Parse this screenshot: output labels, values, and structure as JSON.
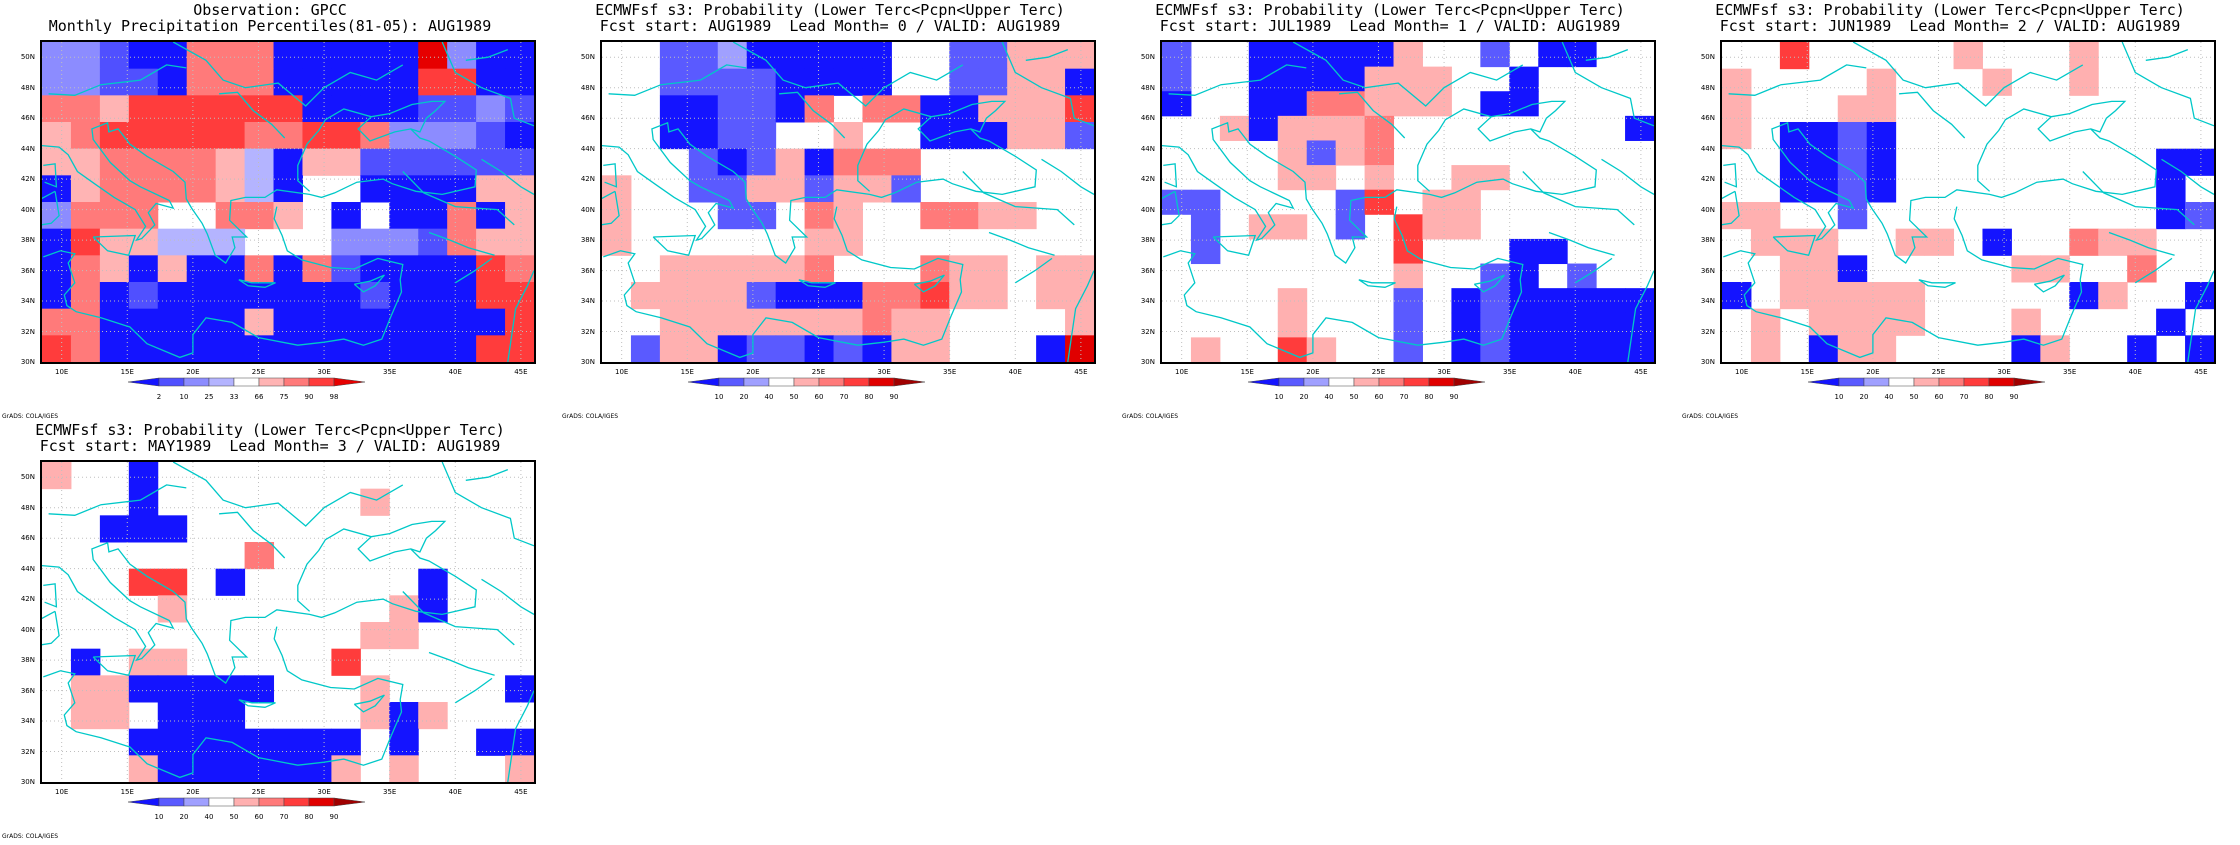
{
  "colors": {
    "coast": "#00c8c8",
    "grid": "#bfbfbf",
    "obs_levels": [
      "#1414ff",
      "#5050ff",
      "#8c8cff",
      "#b4b4ff",
      "#ffffff",
      "#ffb4b4",
      "#ff7a7a",
      "#ff3c3c",
      "#e60000"
    ],
    "prob_levels": [
      "#1414ff",
      "#5a5aff",
      "#a0a0ff",
      "#ffffff",
      "#ffb0b0",
      "#ff7a7a",
      "#ff3c3c",
      "#e00000",
      "#a00000"
    ]
  },
  "map": {
    "y_labels": [
      "50N",
      "48N",
      "46N",
      "44N",
      "42N",
      "40N",
      "38N",
      "36N",
      "34N",
      "32N",
      "30N"
    ],
    "x_labels": [
      "10E",
      "15E",
      "20E",
      "25E",
      "30E",
      "35E",
      "40E",
      "45E"
    ],
    "credit": "GrADS: COLA/IGES"
  },
  "panels": [
    {
      "name": "panel-observation",
      "title1": "Observation: GPCC",
      "title2": "Monthly Precipitation Percentiles(81-05): AUG1989",
      "cbar_type": "obs",
      "cbar_labels": [
        "2",
        "10",
        "25",
        "33",
        "66",
        "75",
        "90",
        "98"
      ],
      "grid": [
        "22100666000008200",
        "22110666000007700",
        "66577777700001121",
        "56777776677622210",
        "55666653055111111",
        "05666653044000055",
        "26664466540400605",
        "07553334442221655",
        "06505006061000076",
        "06010000000100077",
        "66000005000000007",
        "76000000000000077"
      ]
    },
    {
      "name": "panel-lead-0",
      "title1": "ECMWFsf s3: Probability (Lower Terc<Pcpn<Upper Terc)",
      "title2": "Fcst start: AUG1989  Lead Month= 0 / VALID: AUG1989",
      "cbar_type": "prob",
      "cbar_labels": [
        "10",
        "20",
        "40",
        "50",
        "60",
        "70",
        "80",
        "90"
      ],
      "grid": [
        "33112000003311444",
        "33111100003311440",
        "33001105355004446",
        "33001133433000441",
        "33310140555333333",
        "43311441441333333",
        "43331135433554433",
        "43333334433333333",
        "33444445333544344",
        "34444100055644344",
        "33444444454433334",
        "31440110104433307"
      ]
    },
    {
      "name": "panel-lead-1",
      "title1": "ECMWFsf s3: Probability (Lower Terc<Pcpn<Upper Terc)",
      "title2": "Fcst start: JUL1989  Lead Month= 1 / VALID: AUG1989",
      "cbar_type": "prob",
      "cbar_labels": [
        "10",
        "20",
        "40",
        "50",
        "60",
        "70",
        "80",
        "90"
      ],
      "grid": [
        "13300000433130033",
        "13300004443303333",
        "03300554443003333",
        "33404445333333330",
        "33334145333333333",
        "33334434334433333",
        "11333316344333333",
        "31344313644333333",
        "31333333633300333",
        "33333333433103133",
        "33334333130100000",
        "33334333130100000",
        "34336433130100000"
      ]
    },
    {
      "name": "panel-lead-2",
      "title1": "ECMWFsf s3: Probability (Lower Terc<Pcpn<Upper Terc)",
      "title2": "Fcst start: JUN1989  Lead Month= 2 / VALID: AUG1989",
      "cbar_type": "prob",
      "cbar_labels": [
        "10",
        "20",
        "40",
        "50",
        "60",
        "70",
        "80",
        "90"
      ],
      "grid": [
        "33633333433343333",
        "43333433343343333",
        "43334433333333333",
        "43001033333333333",
        "33001033333333300",
        "33001033333333303",
        "44331333333333301",
        "34443344303354433",
        "33440333334433533",
        "03444443333304330",
        "34344443334333303",
        "34304433330433030"
      ]
    },
    {
      "name": "panel-lead-3",
      "title1": "ECMWFsf s3: Probability (Lower Terc<Pcpn<Upper Terc)",
      "title2": "Fcst start: MAY1989  Lead Month= 3 / VALID: AUG1989",
      "cbar_type": "prob",
      "cbar_labels": [
        "10",
        "20",
        "40",
        "50",
        "60",
        "70",
        "80",
        "90"
      ],
      "grid": [
        "43303333333333333",
        "33303333333433333",
        "33000333333333333",
        "33333335333333333",
        "33366303333330333",
        "33334333333340333",
        "33333333333443333",
        "30344333336333333",
        "34400000333433330",
        "34430003333404333",
        "33300000000303300",
        "33340000004343334"
      ]
    }
  ]
}
